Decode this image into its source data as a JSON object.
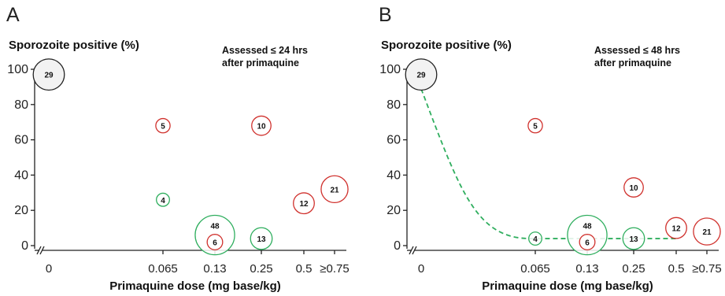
{
  "chart_data": [
    {
      "panel_label": "A",
      "type": "scatter",
      "title": "Sporozoite positive (%)",
      "annotation_line1": "Assessed ≤ 24 hrs",
      "annotation_line2": "after primaquine",
      "xlabel": "Primaquine dose (mg base/kg)",
      "ylabel": "Sporozoite positive (%)",
      "ylim": [
        0,
        100
      ],
      "yticks": [
        "0",
        "20",
        "40",
        "60",
        "80",
        "100"
      ],
      "xticks": [
        "0",
        "0.065",
        "0.13",
        "0.25",
        "0.5",
        "≥0.75"
      ],
      "axis_break": true,
      "colors": {
        "gray": "#222222",
        "red": "#d0312d",
        "green": "#2fae5e"
      },
      "points": [
        {
          "x": "0",
          "y": 97,
          "n": "29",
          "color": "gray"
        },
        {
          "x": "0.065",
          "y": 68,
          "n": "5",
          "color": "red"
        },
        {
          "x": "0.065",
          "y": 26,
          "n": "4",
          "color": "green"
        },
        {
          "x": "0.13",
          "y": 6,
          "n": "48",
          "color": "green"
        },
        {
          "x": "0.13",
          "y": 2,
          "n": "6",
          "color": "red"
        },
        {
          "x": "0.25",
          "y": 68,
          "n": "10",
          "color": "red"
        },
        {
          "x": "0.25",
          "y": 4,
          "n": "13",
          "color": "green"
        },
        {
          "x": "0.5",
          "y": 24,
          "n": "12",
          "color": "red"
        },
        {
          "x": "≥0.75",
          "y": 32,
          "n": "21",
          "color": "red"
        }
      ],
      "fit_line": null
    },
    {
      "panel_label": "B",
      "type": "scatter",
      "title": "Sporozoite positive (%)",
      "annotation_line1": "Assessed ≤ 48 hrs",
      "annotation_line2": "after primaquine",
      "xlabel": "Primaquine dose (mg base/kg)",
      "ylabel": "Sporozoite positive (%)",
      "ylim": [
        0,
        100
      ],
      "yticks": [
        "0",
        "20",
        "40",
        "60",
        "80",
        "100"
      ],
      "xticks": [
        "0",
        "0.065",
        "0.13",
        "0.25",
        "0.5",
        "≥0.75"
      ],
      "axis_break": true,
      "colors": {
        "gray": "#222222",
        "red": "#d0312d",
        "green": "#2fae5e"
      },
      "points": [
        {
          "x": "0",
          "y": 97,
          "n": "29",
          "color": "gray"
        },
        {
          "x": "0.065",
          "y": 68,
          "n": "5",
          "color": "red"
        },
        {
          "x": "0.065",
          "y": 4,
          "n": "4",
          "color": "green"
        },
        {
          "x": "0.13",
          "y": 6,
          "n": "48",
          "color": "green"
        },
        {
          "x": "0.13",
          "y": 2,
          "n": "6",
          "color": "red"
        },
        {
          "x": "0.25",
          "y": 33,
          "n": "10",
          "color": "red"
        },
        {
          "x": "0.25",
          "y": 4,
          "n": "13",
          "color": "green"
        },
        {
          "x": "0.5",
          "y": 10,
          "n": "12",
          "color": "red"
        },
        {
          "x": "≥0.75",
          "y": 8,
          "n": "21",
          "color": "red"
        }
      ],
      "fit_line": {
        "style": "dashed",
        "color": "#2fae5e",
        "x": [
          "0",
          "0.065",
          "0.13",
          "0.25",
          "0.5"
        ],
        "y": [
          97,
          4,
          4,
          4,
          4
        ]
      }
    }
  ]
}
